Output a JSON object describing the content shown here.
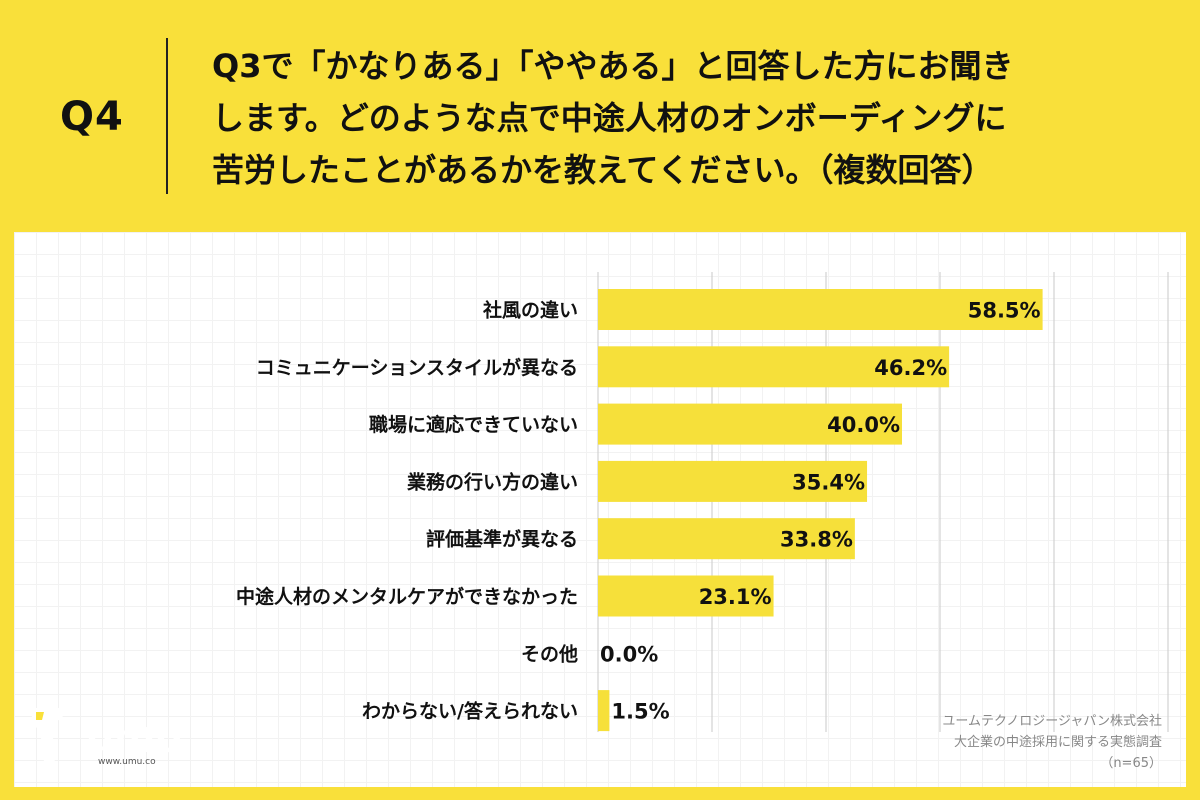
{
  "question": {
    "label": "Q4",
    "text": "Q3で「かなりある」「ややある」と回答した方にお聞き\nします。どのような点で中途人材のオンボーディングに\n苦労したことがあるかを教えてください。（複数回答）"
  },
  "colors": {
    "background": "#f9e03a",
    "bar": "#f6e03a",
    "panel": "#ffffff"
  },
  "chart_data": {
    "type": "bar",
    "orientation": "horizontal",
    "categories": [
      "社風の違い",
      "コミュニケーションスタイルが異なる",
      "職場に適応できていない",
      "業務の行い方の違い",
      "評価基準が異なる",
      "中途人材のメンタルケアができなかった",
      "その他",
      "わからない/答えられない"
    ],
    "values": [
      58.5,
      46.2,
      40.0,
      35.4,
      33.8,
      23.1,
      0.0,
      1.5
    ],
    "value_labels": [
      "58.5%",
      "46.2%",
      "40.0%",
      "35.4%",
      "33.8%",
      "23.1%",
      "0.0%",
      "1.5%"
    ],
    "xlim": [
      0,
      100
    ],
    "grid": true
  },
  "logo": {
    "text": "umu",
    "url": "www.umu.co",
    "icon": "giraffe-icon"
  },
  "source": {
    "company": "ユームテクノロジージャパン株式会社",
    "survey": "大企業の中途採用に関する実態調査",
    "n": "（n=65）"
  }
}
